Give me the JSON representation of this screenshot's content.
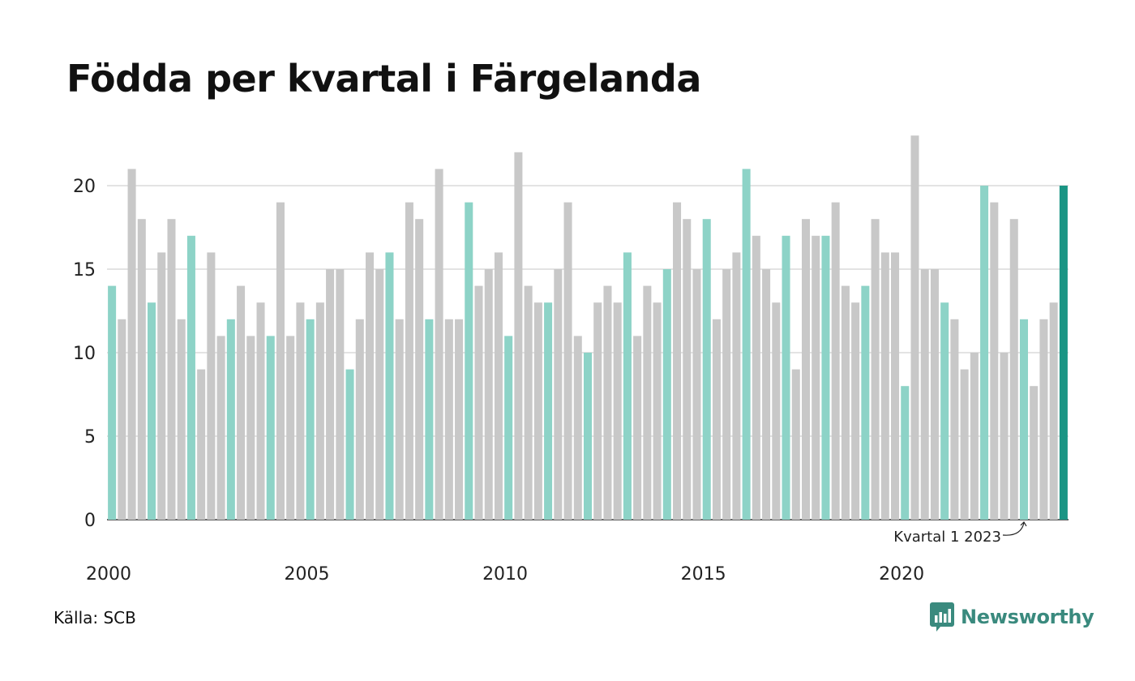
{
  "chart_data": {
    "type": "bar",
    "title": "Födda per kvartal i Färgelanda",
    "ylim": [
      0,
      23
    ],
    "yticks": [
      0,
      5,
      10,
      15,
      20
    ],
    "x_tick_labels": [
      "2000",
      "2005",
      "2010",
      "2015",
      "2020"
    ],
    "series_unit": "quarter",
    "start": "2000 Q1",
    "values": [
      14,
      12,
      21,
      18,
      13,
      16,
      18,
      12,
      17,
      9,
      16,
      11,
      12,
      14,
      11,
      13,
      11,
      19,
      11,
      13,
      12,
      13,
      15,
      15,
      9,
      12,
      16,
      15,
      16,
      12,
      19,
      18,
      12,
      21,
      12,
      12,
      19,
      14,
      15,
      16,
      11,
      22,
      14,
      13,
      13,
      15,
      19,
      11,
      10,
      13,
      14,
      13,
      16,
      11,
      14,
      13,
      15,
      19,
      18,
      15,
      18,
      12,
      15,
      16,
      21,
      17,
      15,
      13,
      17,
      9,
      18,
      17,
      17,
      19,
      14,
      13,
      14,
      18,
      16,
      16,
      8,
      23,
      15,
      15,
      13,
      12,
      9,
      10,
      20,
      19,
      10,
      18,
      12,
      8,
      12,
      13,
      20
    ],
    "annotation": "Kvartal 1 2023",
    "grid": true
  },
  "colors": {
    "q1": "#8dd3c7",
    "other": "#c8c8c8",
    "latest": "#1a9584",
    "grid": "#e3e3e3",
    "axis": "#333333",
    "brand": "#3a8a7e"
  },
  "footer": {
    "source": "Källa: SCB",
    "brand": "Newsworthy"
  }
}
